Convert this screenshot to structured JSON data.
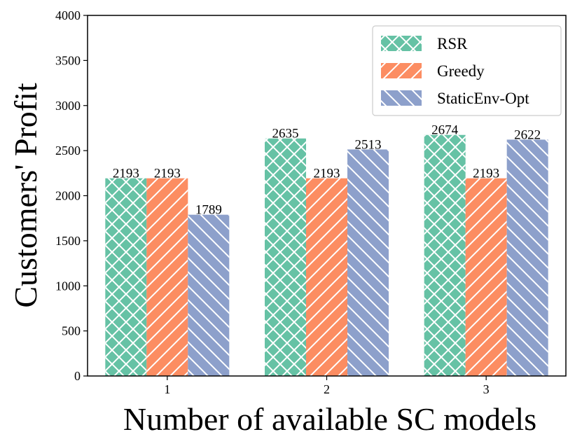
{
  "chart_data": {
    "type": "bar",
    "title": "",
    "xlabel": "Number of available SC models",
    "ylabel": "Customers' Profit",
    "categories": [
      "1",
      "2",
      "3"
    ],
    "ylim": [
      0,
      4000
    ],
    "yticks": [
      0,
      500,
      1000,
      1500,
      2000,
      2500,
      3000,
      3500,
      4000
    ],
    "grid": false,
    "legend_position": "top-right",
    "series": [
      {
        "name": "RSR",
        "values": [
          2193,
          2635,
          2674
        ],
        "color": "#66c2a5",
        "hatch": "cross"
      },
      {
        "name": "Greedy",
        "values": [
          2193,
          2193,
          2193
        ],
        "color": "#fc8d62",
        "hatch": "forward"
      },
      {
        "name": "StaticEnv-Opt",
        "values": [
          1789,
          2513,
          2622
        ],
        "color": "#8da0cb",
        "hatch": "back"
      }
    ]
  }
}
